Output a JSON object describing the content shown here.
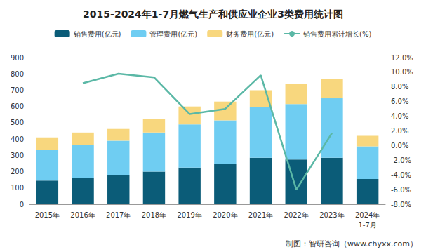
{
  "chart_data": {
    "type": "bar",
    "title": "2015-2024年1-7月燃气生产和供应业企业3类费用统计图",
    "categories": [
      "2015年",
      "2016年",
      "2017年",
      "2018年",
      "2019年",
      "2020年",
      "2021年",
      "2022年",
      "2023年",
      "2024年\n1-7月"
    ],
    "series": [
      {
        "name": "销售费用(亿元)",
        "type": "bar",
        "color": "#0b5c78",
        "values": [
          145,
          163,
          180,
          200,
          225,
          248,
          285,
          275,
          285,
          155
        ]
      },
      {
        "name": "管理费用(亿元)",
        "type": "bar",
        "color": "#6fcdf2",
        "values": [
          190,
          202,
          210,
          240,
          265,
          267,
          310,
          340,
          365,
          200
        ]
      },
      {
        "name": "财务费用(亿元)",
        "type": "bar",
        "color": "#f8d77e",
        "values": [
          75,
          75,
          72,
          85,
          110,
          115,
          105,
          125,
          120,
          65
        ]
      },
      {
        "name": "销售费用累计增长(%)",
        "type": "line",
        "axis": "y2",
        "color": "#5bb8a6",
        "values": [
          null,
          8.5,
          9.8,
          9.3,
          4.3,
          5.0,
          9.6,
          -6.0,
          1.7,
          null
        ]
      }
    ],
    "stacked": true,
    "ylim": [
      0,
      900
    ],
    "yticks": [
      0,
      100,
      200,
      300,
      400,
      500,
      600,
      700,
      800,
      900
    ],
    "y2lim": [
      -8,
      12
    ],
    "y2ticks": [
      {
        "value": -8,
        "label": "-8.0%"
      },
      {
        "value": -6,
        "label": "-6.0%"
      },
      {
        "value": -4,
        "label": "-4.0%"
      },
      {
        "value": -2,
        "label": "-2.0%"
      },
      {
        "value": 0,
        "label": "0.0%"
      },
      {
        "value": 2,
        "label": "2.0%"
      },
      {
        "value": 4,
        "label": "4.0%"
      },
      {
        "value": 6,
        "label": "6.0%"
      },
      {
        "value": 8,
        "label": "8.0%"
      },
      {
        "value": 10,
        "label": "10.0%"
      },
      {
        "value": 12,
        "label": "12.0%"
      }
    ],
    "grid": false,
    "legend": "top",
    "annotations": [
      "制图：智研咨询（www.chyxx.com）"
    ]
  }
}
